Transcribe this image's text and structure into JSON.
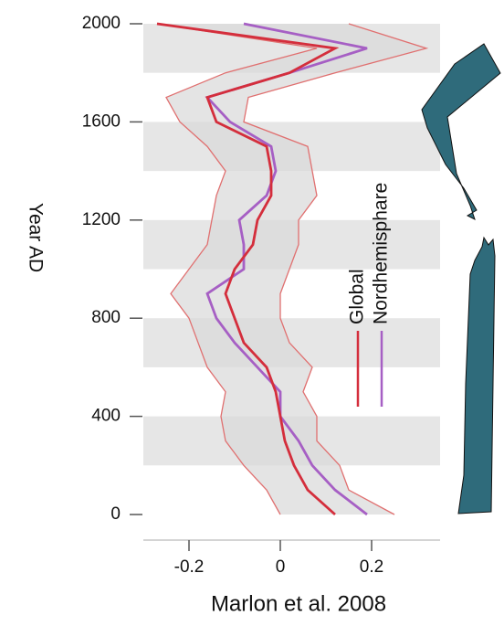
{
  "chart_data": {
    "type": "line",
    "x_label": "Marlon et al. 2008",
    "y_label": "Year AD",
    "x": [
      0,
      100,
      200,
      300,
      400,
      500,
      600,
      700,
      800,
      900,
      1000,
      1100,
      1200,
      1300,
      1400,
      1500,
      1600,
      1700,
      1800,
      1900,
      2000
    ],
    "series": [
      {
        "color": "#e07070",
        "values": [
          0.25,
          0.15,
          0.13,
          0.08,
          0.08,
          0.05,
          0.07,
          0.02,
          0.0,
          0.0,
          0.02,
          0.04,
          0.04,
          0.08,
          0.07,
          0.06,
          -0.08,
          -0.07,
          0.12,
          0.32,
          0.15
        ]
      },
      {
        "color": "#e07070",
        "values": [
          0.0,
          -0.03,
          -0.08,
          -0.12,
          -0.13,
          -0.12,
          -0.16,
          -0.18,
          -0.2,
          -0.24,
          -0.2,
          -0.16,
          -0.15,
          -0.14,
          -0.12,
          -0.16,
          -0.22,
          -0.25,
          -0.12,
          0.08,
          -0.27
        ]
      },
      {
        "name": "Nordhemisphare",
        "color": "#a65fc4",
        "values": [
          0.19,
          0.12,
          0.07,
          0.04,
          0.0,
          0.0,
          -0.05,
          -0.1,
          -0.14,
          -0.16,
          -0.08,
          -0.08,
          -0.09,
          -0.03,
          -0.01,
          -0.02,
          -0.11,
          -0.16,
          0.02,
          0.19,
          -0.08
        ]
      },
      {
        "name": "Global",
        "color": "#d42e3c",
        "values": [
          0.12,
          0.06,
          0.03,
          0.01,
          0.0,
          -0.01,
          -0.03,
          -0.08,
          -0.1,
          -0.12,
          -0.1,
          -0.06,
          -0.05,
          -0.02,
          -0.02,
          -0.03,
          -0.14,
          -0.16,
          0.02,
          0.12,
          -0.27
        ]
      }
    ],
    "xlim": [
      -0.3,
      0.35
    ],
    "xticks": [
      -0.2,
      0,
      0.2
    ],
    "ylim": [
      0,
      2000
    ],
    "yticks": [
      0,
      400,
      800,
      1200,
      1600,
      2000
    ]
  }
}
